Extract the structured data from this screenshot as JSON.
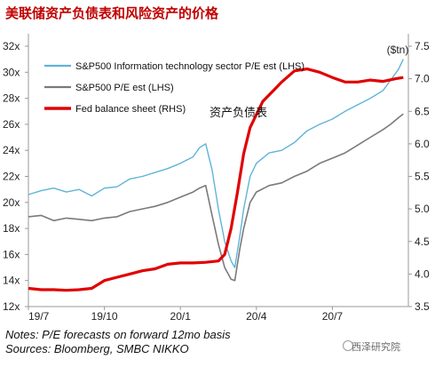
{
  "page_title": "美联储资产负债表和风险资产的价格",
  "notes": {
    "line1": "Notes: P/E forecasts on forward 12mo basis",
    "line2": "Sources: Bloomberg, SMBC NIKKO"
  },
  "watermark": "西泽研究院",
  "chart_data": {
    "type": "line",
    "title": "",
    "annotation": "资产负债表",
    "right_axis_unit": "($tn)",
    "x_ticks": [
      "19/7",
      "19/10",
      "20/1",
      "20/4",
      "20/7"
    ],
    "x_range": [
      0,
      15
    ],
    "left_axis": {
      "ylim": [
        12,
        32
      ],
      "ticks": [
        "12x",
        "14x",
        "16x",
        "18x",
        "20x",
        "22x",
        "24x",
        "26x",
        "28x",
        "30x",
        "32x"
      ]
    },
    "right_axis": {
      "ylim": [
        3.5,
        7.5
      ],
      "ticks": [
        "3.5",
        "4.0",
        "4.5",
        "5.0",
        "5.5",
        "6.0",
        "6.5",
        "7.0",
        "7.5"
      ]
    },
    "legend": {
      "position": "top-left"
    },
    "colors": {
      "it_pe": "#5fb4d8",
      "sp_pe": "#7a7a7a",
      "fed": "#e00000"
    },
    "series": [
      {
        "name": "S&P500 Information technology sector P/E est (LHS)",
        "axis": "left",
        "x": [
          0,
          0.5,
          1,
          1.5,
          2,
          2.5,
          3,
          3.5,
          4,
          4.5,
          5,
          5.5,
          6,
          6.5,
          6.75,
          7,
          7.25,
          7.5,
          7.75,
          8,
          8.15,
          8.35,
          8.5,
          8.75,
          9,
          9.5,
          10,
          10.5,
          11,
          11.5,
          12,
          12.5,
          13,
          13.5,
          14,
          14.3,
          14.6,
          14.8
        ],
        "values": [
          20.6,
          20.9,
          21.1,
          20.8,
          21.0,
          20.5,
          21.1,
          21.2,
          21.8,
          22.0,
          22.3,
          22.6,
          23.0,
          23.5,
          24.2,
          24.5,
          22.5,
          19.5,
          17.0,
          15.5,
          15.0,
          17.5,
          19.5,
          22.0,
          23.0,
          23.8,
          24.0,
          24.6,
          25.5,
          26.0,
          26.4,
          27.0,
          27.5,
          28.0,
          28.6,
          29.4,
          30.2,
          31.0
        ]
      },
      {
        "name": "S&P500 P/E est (LHS)",
        "axis": "left",
        "x": [
          0,
          0.5,
          1,
          1.5,
          2,
          2.5,
          3,
          3.5,
          4,
          4.5,
          5,
          5.5,
          6,
          6.5,
          6.75,
          7,
          7.25,
          7.5,
          7.75,
          8,
          8.15,
          8.35,
          8.5,
          8.75,
          9,
          9.5,
          10,
          10.5,
          11,
          11.5,
          12,
          12.5,
          13,
          13.5,
          14,
          14.3,
          14.6,
          14.8
        ],
        "values": [
          18.9,
          19.0,
          18.6,
          18.8,
          18.7,
          18.6,
          18.8,
          18.9,
          19.3,
          19.5,
          19.7,
          20.0,
          20.4,
          20.8,
          21.1,
          21.3,
          19.0,
          16.8,
          15.0,
          14.1,
          14.0,
          16.5,
          18.0,
          20.0,
          20.8,
          21.3,
          21.5,
          22.0,
          22.4,
          23.0,
          23.4,
          23.8,
          24.4,
          25.0,
          25.6,
          26.0,
          26.5,
          26.8
        ]
      },
      {
        "name": "Fed balance sheet (RHS)",
        "axis": "right",
        "x": [
          0,
          0.5,
          1,
          1.5,
          2,
          2.5,
          3,
          3.5,
          4,
          4.5,
          5,
          5.5,
          6,
          6.5,
          7,
          7.5,
          7.75,
          8,
          8.25,
          8.5,
          8.75,
          9,
          9.25,
          9.5,
          9.75,
          10,
          10.5,
          11,
          11.5,
          12,
          12.5,
          13,
          13.5,
          14,
          14.5,
          14.8
        ],
        "values": [
          3.78,
          3.76,
          3.76,
          3.75,
          3.76,
          3.78,
          3.9,
          3.95,
          4.0,
          4.05,
          4.08,
          4.15,
          4.17,
          4.17,
          4.18,
          4.2,
          4.3,
          4.7,
          5.25,
          5.85,
          6.25,
          6.45,
          6.65,
          6.75,
          6.85,
          6.95,
          7.12,
          7.15,
          7.1,
          7.02,
          6.95,
          6.95,
          6.98,
          6.96,
          7.0,
          7.02
        ]
      }
    ]
  }
}
